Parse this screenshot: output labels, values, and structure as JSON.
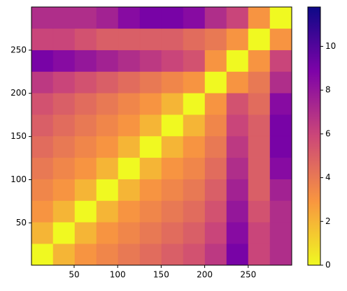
{
  "chart_data": {
    "type": "heatmap",
    "xlim": [
      1,
      300
    ],
    "ylim": [
      1,
      300
    ],
    "xticks": [
      50,
      100,
      150,
      200,
      250
    ],
    "yticks": [
      50,
      100,
      150,
      200,
      250
    ],
    "values": [
      [
        0,
        2,
        3,
        3.5,
        4,
        4.5,
        5,
        5.5,
        6.5,
        9,
        6,
        7
      ],
      [
        2,
        0,
        2,
        3,
        3.5,
        4,
        4.5,
        5,
        6,
        8.5,
        6,
        7
      ],
      [
        3,
        2,
        0,
        2,
        3,
        3.5,
        4,
        4.5,
        5.5,
        8,
        5.5,
        7
      ],
      [
        3.5,
        3,
        2,
        0,
        2,
        3,
        3.5,
        4,
        5,
        7.5,
        5,
        7.5
      ],
      [
        4,
        3.5,
        3,
        2,
        0,
        2,
        3,
        3.5,
        4.5,
        7,
        5,
        8.5
      ],
      [
        4.5,
        4,
        3.5,
        3,
        2,
        0,
        2,
        3,
        4,
        6.5,
        5,
        9
      ],
      [
        5,
        4.5,
        4,
        3.5,
        3,
        2,
        0,
        2,
        3.5,
        6,
        5,
        9
      ],
      [
        5.5,
        5,
        4.5,
        4,
        3.5,
        3,
        2,
        0,
        3,
        5.5,
        4.5,
        8.5
      ],
      [
        6.5,
        6,
        5.5,
        5,
        4.5,
        4,
        3.5,
        3,
        0,
        3,
        4,
        7
      ],
      [
        9,
        8.5,
        8,
        7.5,
        7,
        6.5,
        6,
        5.5,
        3,
        0,
        3,
        6
      ],
      [
        6,
        6,
        5.5,
        5,
        5,
        5,
        5,
        4.5,
        4,
        3,
        0,
        3
      ],
      [
        7,
        7,
        7,
        7.5,
        8.5,
        9,
        9,
        8.5,
        7,
        6,
        3,
        0
      ]
    ],
    "clim": [
      0,
      11.8
    ],
    "colorbar_ticks": [
      0,
      2,
      4,
      6,
      8,
      10
    ],
    "colormap": [
      "#f0f921",
      "#f89540",
      "#cc4778",
      "#7e03a8",
      "#0d0887"
    ]
  }
}
